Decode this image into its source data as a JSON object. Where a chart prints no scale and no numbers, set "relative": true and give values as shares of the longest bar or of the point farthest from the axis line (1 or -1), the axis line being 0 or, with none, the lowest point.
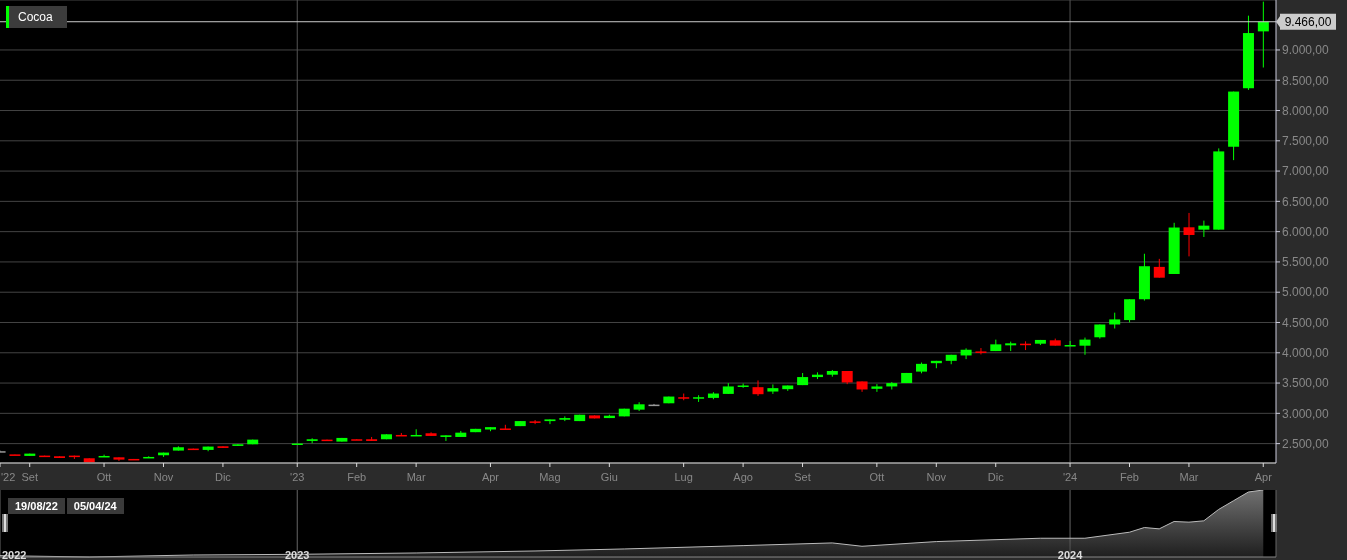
{
  "chart_data": [
    {
      "type": "candlestick",
      "x": [
        "2022-08-19",
        "2022-08-26",
        "2022-09-02",
        "2022-09-09",
        "2022-09-16",
        "2022-09-23",
        "2022-09-30",
        "2022-10-07",
        "2022-10-14",
        "2022-10-21",
        "2022-10-28",
        "2022-11-04",
        "2022-11-11",
        "2022-11-18",
        "2022-11-25",
        "2022-12-02",
        "2022-12-09",
        "2022-12-16",
        "2023-01-06",
        "2023-01-13",
        "2023-01-20",
        "2023-01-27",
        "2023-02-03",
        "2023-02-10",
        "2023-02-17",
        "2023-02-24",
        "2023-03-03",
        "2023-03-10",
        "2023-03-17",
        "2023-03-24",
        "2023-03-31",
        "2023-04-07",
        "2023-04-14",
        "2023-04-21",
        "2023-04-28",
        "2023-05-05",
        "2023-05-12",
        "2023-05-19",
        "2023-05-26",
        "2023-06-02",
        "2023-06-09",
        "2023-06-16",
        "2023-06-23",
        "2023-06-30",
        "2023-07-07",
        "2023-07-14",
        "2023-07-21",
        "2023-07-28",
        "2023-08-04",
        "2023-08-11",
        "2023-08-18",
        "2023-08-25",
        "2023-09-01",
        "2023-09-08",
        "2023-09-15",
        "2023-09-22",
        "2023-09-29",
        "2023-10-06",
        "2023-10-13",
        "2023-10-20",
        "2023-10-27",
        "2023-11-03",
        "2023-11-10",
        "2023-11-17",
        "2023-11-24",
        "2023-12-01",
        "2023-12-08",
        "2023-12-15",
        "2023-12-22",
        "2023-12-29",
        "2024-01-05",
        "2024-01-12",
        "2024-01-19",
        "2024-01-26",
        "2024-02-02",
        "2024-02-09",
        "2024-02-16",
        "2024-02-23",
        "2024-03-01",
        "2024-03-08",
        "2024-03-15",
        "2024-03-22",
        "2024-03-29",
        "2024-04-05"
      ],
      "series": [
        {
          "name": "Cocoa",
          "color": "#00ff00",
          "ohlc": [
            [
              2375,
              2385,
              2365,
              2375
            ],
            [
              2322,
              2322,
              2316,
              2316
            ],
            [
              2297,
              2335,
              2297,
              2335
            ],
            [
              2302,
              2302,
              2280,
              2280
            ],
            [
              2291,
              2291,
              2263,
              2263
            ],
            [
              2302,
              2302,
              2247,
              2280
            ],
            [
              2258,
              2258,
              2192,
              2192
            ],
            [
              2280,
              2318,
              2280,
              2296
            ],
            [
              2274,
              2274,
              2214,
              2236
            ],
            [
              2247,
              2247,
              2230,
              2230
            ],
            [
              2263,
              2291,
              2263,
              2280
            ],
            [
              2308,
              2352,
              2280,
              2352
            ],
            [
              2385,
              2456,
              2385,
              2440
            ],
            [
              2418,
              2418,
              2396,
              2396
            ],
            [
              2396,
              2451,
              2374,
              2451
            ],
            [
              2456,
              2456,
              2429,
              2429
            ],
            [
              2462,
              2489,
              2462,
              2489
            ],
            [
              2489,
              2566,
              2489,
              2566
            ],
            [
              2498,
              2502,
              2498,
              2502
            ],
            [
              2544,
              2588,
              2506,
              2572
            ],
            [
              2566,
              2566,
              2544,
              2544
            ],
            [
              2533,
              2594,
              2533,
              2594
            ],
            [
              2572,
              2572,
              2560,
              2560
            ],
            [
              2572,
              2610,
              2544,
              2544
            ],
            [
              2572,
              2654,
              2572,
              2654
            ],
            [
              2643,
              2676,
              2627,
              2627
            ],
            [
              2627,
              2737,
              2627,
              2643
            ],
            [
              2671,
              2687,
              2627,
              2627
            ],
            [
              2610,
              2637,
              2544,
              2637
            ],
            [
              2610,
              2709,
              2610,
              2681
            ],
            [
              2689,
              2744,
              2689,
              2744
            ],
            [
              2733,
              2772,
              2705,
              2772
            ],
            [
              2750,
              2811,
              2739,
              2739
            ],
            [
              2789,
              2872,
              2789,
              2872
            ],
            [
              2867,
              2889,
              2822,
              2850
            ],
            [
              2872,
              2900,
              2822,
              2900
            ],
            [
              2894,
              2950,
              2872,
              2922
            ],
            [
              2872,
              2977,
              2872,
              2977
            ],
            [
              2966,
              2966,
              2916,
              2916
            ],
            [
              2922,
              2977,
              2922,
              2961
            ],
            [
              2950,
              3077,
              2950,
              3077
            ],
            [
              3061,
              3183,
              3038,
              3149
            ],
            [
              3144,
              3155,
              3122,
              3144
            ],
            [
              3166,
              3277,
              3166,
              3277
            ],
            [
              3266,
              3327,
              3216,
              3249
            ],
            [
              3255,
              3299,
              3188,
              3266
            ],
            [
              3255,
              3349,
              3233,
              3327
            ],
            [
              3321,
              3499,
              3321,
              3444
            ],
            [
              3438,
              3493,
              3421,
              3460
            ],
            [
              3432,
              3543,
              3288,
              3316
            ],
            [
              3360,
              3477,
              3321,
              3416
            ],
            [
              3399,
              3460,
              3371,
              3460
            ],
            [
              3466,
              3666,
              3466,
              3599
            ],
            [
              3599,
              3677,
              3566,
              3638
            ],
            [
              3638,
              3716,
              3605,
              3699
            ],
            [
              3699,
              3699,
              3482,
              3510
            ],
            [
              3527,
              3527,
              3355,
              3394
            ],
            [
              3405,
              3482,
              3355,
              3444
            ],
            [
              3444,
              3516,
              3394,
              3499
            ],
            [
              3500,
              3667,
              3500,
              3667
            ],
            [
              3689,
              3839,
              3661,
              3817
            ],
            [
              3828,
              3867,
              3745,
              3867
            ],
            [
              3867,
              3967,
              3811,
              3967
            ],
            [
              3956,
              4073,
              3895,
              4050
            ],
            [
              4022,
              4078,
              3973,
              4010
            ],
            [
              4028,
              4217,
              4028,
              4139
            ],
            [
              4123,
              4184,
              4028,
              4156
            ],
            [
              4150,
              4189,
              4045,
              4134
            ],
            [
              4150,
              4212,
              4128,
              4212
            ],
            [
              4206,
              4234,
              4117,
              4117
            ],
            [
              4117,
              4195,
              4117,
              4128
            ],
            [
              4117,
              4251,
              3967,
              4217
            ],
            [
              4256,
              4467,
              4234,
              4467
            ],
            [
              4467,
              4662,
              4401,
              4551
            ],
            [
              4540,
              4884,
              4501,
              4884
            ],
            [
              4884,
              5635,
              4862,
              5429
            ],
            [
              5418,
              5551,
              5240,
              5240
            ],
            [
              5301,
              6146,
              5301,
              6068
            ],
            [
              6072,
              6309,
              5592,
              5945
            ],
            [
              6033,
              6182,
              5912,
              6099
            ],
            [
              6033,
              7375,
              6033,
              7325
            ],
            [
              7402,
              8313,
              7181,
              8313
            ],
            [
              8368,
              9566,
              8340,
              9279
            ],
            [
              9307,
              9798,
              8710,
              9466
            ]
          ],
          "colors": [
            "#999999",
            "#ff0000",
            "#00ff00",
            "#ff0000",
            "#ff0000",
            "#ff0000",
            "#ff0000",
            "#00ff00",
            "#ff0000",
            "#ff0000",
            "#00ff00",
            "#00ff00",
            "#00ff00",
            "#ff0000",
            "#00ff00",
            "#ff0000",
            "#00ff00",
            "#00ff00",
            "#00ff00",
            "#00ff00",
            "#ff0000",
            "#00ff00",
            "#ff0000",
            "#ff0000",
            "#00ff00",
            "#ff0000",
            "#00ff00",
            "#ff0000",
            "#00ff00",
            "#00ff00",
            "#00ff00",
            "#00ff00",
            "#ff0000",
            "#00ff00",
            "#ff0000",
            "#00ff00",
            "#00ff00",
            "#00ff00",
            "#ff0000",
            "#00ff00",
            "#00ff00",
            "#00ff00",
            "#999999",
            "#00ff00",
            "#ff0000",
            "#00ff00",
            "#00ff00",
            "#00ff00",
            "#00ff00",
            "#ff0000",
            "#00ff00",
            "#00ff00",
            "#00ff00",
            "#00ff00",
            "#00ff00",
            "#ff0000",
            "#ff0000",
            "#00ff00",
            "#00ff00",
            "#00ff00",
            "#00ff00",
            "#00ff00",
            "#00ff00",
            "#00ff00",
            "#ff0000",
            "#00ff00",
            "#00ff00",
            "#ff0000",
            "#00ff00",
            "#ff0000",
            "#00ff00",
            "#00ff00",
            "#00ff00",
            "#00ff00",
            "#00ff00",
            "#00ff00",
            "#ff0000",
            "#00ff00",
            "#ff0000",
            "#00ff00",
            "#00ff00",
            "#00ff00",
            "#00ff00",
            "#00ff00"
          ]
        }
      ],
      "xlim": [
        "2022-08-19",
        "2024-04-11"
      ],
      "xticks": [
        {
          "value": "2022-08-19",
          "label": "'22"
        },
        {
          "value": "2022-09-02",
          "label": "Set"
        },
        {
          "value": "2022-10-07",
          "label": "Ott"
        },
        {
          "value": "2022-11-04",
          "label": "Nov"
        },
        {
          "value": "2022-12-02",
          "label": "Dic"
        },
        {
          "value": "2023-01-06",
          "label": "'23"
        },
        {
          "value": "2023-02-03",
          "label": "Feb"
        },
        {
          "value": "2023-03-03",
          "label": "Mar"
        },
        {
          "value": "2023-04-07",
          "label": "Apr"
        },
        {
          "value": "2023-05-05",
          "label": "Mag"
        },
        {
          "value": "2023-06-02",
          "label": "Giu"
        },
        {
          "value": "2023-07-07",
          "label": "Lug"
        },
        {
          "value": "2023-08-04",
          "label": "Ago"
        },
        {
          "value": "2023-09-01",
          "label": "Set"
        },
        {
          "value": "2023-10-06",
          "label": "Ott"
        },
        {
          "value": "2023-11-03",
          "label": "Nov"
        },
        {
          "value": "2023-12-01",
          "label": "Dic"
        },
        {
          "value": "2024-01-05",
          "label": "'24"
        },
        {
          "value": "2024-02-02",
          "label": "Feb"
        },
        {
          "value": "2024-03-01",
          "label": "Mar"
        },
        {
          "value": "2024-04-05",
          "label": "Apr"
        }
      ],
      "ylim": [
        2180,
        9825
      ],
      "yticks": [
        {
          "value": 2500,
          "label": "2.500,00"
        },
        {
          "value": 3000,
          "label": "3.000,00"
        },
        {
          "value": 3500,
          "label": "3.500,00"
        },
        {
          "value": 4000,
          "label": "4.000,00"
        },
        {
          "value": 4500,
          "label": "4.500,00"
        },
        {
          "value": 5000,
          "label": "5.000,00"
        },
        {
          "value": 5500,
          "label": "5.500,00"
        },
        {
          "value": 6000,
          "label": "6.000,00"
        },
        {
          "value": 6500,
          "label": "6.500,00"
        },
        {
          "value": 7000,
          "label": "7.000,00"
        },
        {
          "value": 7500,
          "label": "7.500,00"
        },
        {
          "value": 8000,
          "label": "8.000,00"
        },
        {
          "value": 8500,
          "label": "8.500,00"
        },
        {
          "value": 9000,
          "label": "9.000,00"
        }
      ],
      "grid": "y",
      "legend": "top left",
      "ref_lines": [
        {
          "axis": "y",
          "value": 9466,
          "label": "9.466,00",
          "color": "#cccccc"
        },
        {
          "axis": "x",
          "value": "2023-01-06",
          "color": "#555555"
        },
        {
          "axis": "x",
          "value": "2024-01-05",
          "color": "#555555"
        }
      ]
    },
    {
      "type": "area",
      "relative": true,
      "color": "#bbbbbb",
      "x": [
        "2022-08-19",
        "2022-09-30",
        "2022-11-18",
        "2023-01-06",
        "2023-03-03",
        "2023-04-28",
        "2023-06-09",
        "2023-08-04",
        "2023-09-15",
        "2023-09-29",
        "2023-11-03",
        "2023-12-22",
        "2024-01-12",
        "2024-02-02",
        "2024-02-09",
        "2024-02-16",
        "2024-02-23",
        "2024-03-01",
        "2024-03-08",
        "2024-03-15",
        "2024-03-22",
        "2024-03-29",
        "2024-04-05"
      ],
      "values": [
        0.02,
        0,
        0.03,
        0.04,
        0.06,
        0.09,
        0.12,
        0.17,
        0.21,
        0.16,
        0.23,
        0.28,
        0.28,
        0.37,
        0.44,
        0.42,
        0.53,
        0.52,
        0.54,
        0.71,
        0.84,
        0.97,
        1
      ],
      "xlim": [
        "2022-08-19",
        "2024-04-11"
      ],
      "xticks": [
        {
          "value": "2022-08-19",
          "label": "2022"
        },
        {
          "value": "2023-01-06",
          "label": "2023"
        },
        {
          "value": "2024-01-05",
          "label": "2024"
        }
      ],
      "grid": "x",
      "annotations": [
        "19/08/22",
        "05/04/24"
      ]
    }
  ]
}
